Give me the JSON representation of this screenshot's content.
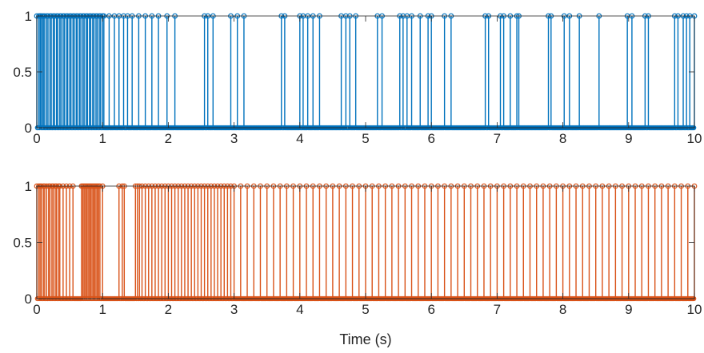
{
  "chart_data": [
    {
      "type": "stem",
      "color": "#0072BD",
      "title": "",
      "xlabel": "",
      "ylabel": "",
      "xlim": [
        0,
        10
      ],
      "ylim": [
        0,
        1
      ],
      "xticks": [
        "0",
        "1",
        "2",
        "3",
        "4",
        "5",
        "6",
        "7",
        "8",
        "9",
        "10"
      ],
      "yticks": [
        "0",
        "0.5",
        "1"
      ],
      "grid": false,
      "x_step": 0.01,
      "value_when_listed": 1,
      "value_otherwise": 0,
      "ones_at_x": [
        0.0,
        0.03,
        0.05,
        0.06,
        0.08,
        0.1,
        0.12,
        0.15,
        0.17,
        0.2,
        0.22,
        0.25,
        0.27,
        0.3,
        0.32,
        0.35,
        0.37,
        0.4,
        0.42,
        0.45,
        0.47,
        0.5,
        0.52,
        0.55,
        0.57,
        0.6,
        0.62,
        0.65,
        0.67,
        0.7,
        0.72,
        0.75,
        0.77,
        0.8,
        0.82,
        0.85,
        0.87,
        0.9,
        0.92,
        0.95,
        0.97,
        1.0,
        1.02,
        1.1,
        1.18,
        1.25,
        1.32,
        1.38,
        1.45,
        1.55,
        1.65,
        1.75,
        1.85,
        1.98,
        2.1,
        2.55,
        2.6,
        2.68,
        2.95,
        3.05,
        3.15,
        3.72,
        3.77,
        4.0,
        4.05,
        4.12,
        4.2,
        4.3,
        4.63,
        4.7,
        4.76,
        4.85,
        5.18,
        5.25,
        5.52,
        5.57,
        5.63,
        5.7,
        5.83,
        5.95,
        6.0,
        6.2,
        6.3,
        6.82,
        6.87,
        7.05,
        7.1,
        7.2,
        7.3,
        7.33,
        7.78,
        7.82,
        8.02,
        8.1,
        8.25,
        8.55,
        8.98,
        9.05,
        9.25,
        9.3,
        9.7,
        9.75,
        9.83,
        9.88,
        9.93,
        10.0
      ]
    },
    {
      "type": "stem",
      "color": "#D95319",
      "title": "",
      "xlabel": "Time (s)",
      "ylabel": "",
      "xlim": [
        0,
        10
      ],
      "ylim": [
        0,
        1
      ],
      "xticks": [
        "0",
        "1",
        "2",
        "3",
        "4",
        "5",
        "6",
        "7",
        "8",
        "9",
        "10"
      ],
      "yticks": [
        "0",
        "0.5",
        "1"
      ],
      "grid": false,
      "x_step": 0.01,
      "value_when_listed": 1,
      "value_otherwise": 0,
      "ones_at_x": [
        0.0,
        0.03,
        0.05,
        0.07,
        0.1,
        0.12,
        0.15,
        0.18,
        0.2,
        0.23,
        0.25,
        0.28,
        0.3,
        0.33,
        0.35,
        0.4,
        0.45,
        0.5,
        0.55,
        0.68,
        0.7,
        0.72,
        0.74,
        0.76,
        0.78,
        0.8,
        0.82,
        0.84,
        0.86,
        0.88,
        0.9,
        0.92,
        0.94,
        0.96,
        1.0,
        1.25,
        1.3,
        1.33,
        1.5,
        1.53,
        1.56,
        1.6,
        1.65,
        1.7,
        1.75,
        1.8,
        1.85,
        1.9,
        1.95,
        2.0,
        2.05,
        2.1,
        2.15,
        2.2,
        2.25,
        2.3,
        2.35,
        2.4,
        2.45,
        2.5,
        2.55,
        2.6,
        2.65,
        2.7,
        2.75,
        2.8,
        2.85,
        2.9,
        2.95,
        3.0,
        3.1,
        3.2,
        3.3,
        3.4,
        3.5,
        3.6,
        3.7,
        3.8,
        3.9,
        4.0,
        4.1,
        4.2,
        4.3,
        4.4,
        4.5,
        4.6,
        4.7,
        4.8,
        4.9,
        5.0,
        5.1,
        5.2,
        5.3,
        5.4,
        5.5,
        5.6,
        5.7,
        5.8,
        5.9,
        6.0,
        6.1,
        6.2,
        6.3,
        6.4,
        6.5,
        6.6,
        6.7,
        6.8,
        6.9,
        7.0,
        7.1,
        7.2,
        7.3,
        7.4,
        7.5,
        7.6,
        7.7,
        7.8,
        7.9,
        8.0,
        8.1,
        8.2,
        8.3,
        8.4,
        8.5,
        8.6,
        8.7,
        8.8,
        8.9,
        9.0,
        9.1,
        9.2,
        9.3,
        9.4,
        9.5,
        9.6,
        9.7,
        9.8,
        9.9,
        10.0
      ]
    }
  ]
}
